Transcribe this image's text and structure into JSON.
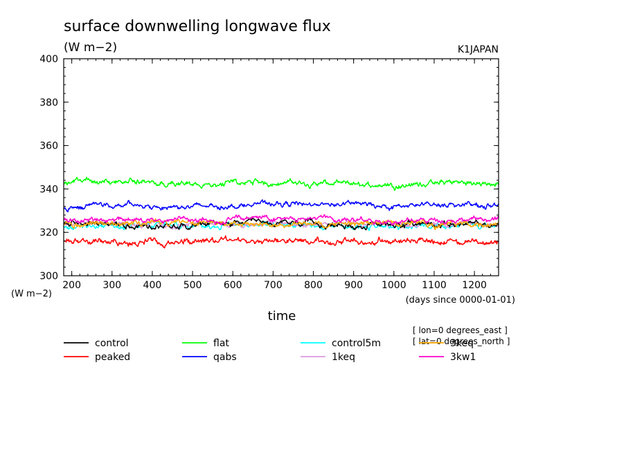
{
  "chart_data": {
    "type": "line",
    "title": "surface downwelling longwave flux",
    "units": "(W m−2)",
    "source_label": "K1JAPAN",
    "ylabel_unit": "(W m−2)",
    "xlabel": "time",
    "x_units_note": "(days since 0000-01-01)",
    "xlim": [
      180,
      1260
    ],
    "ylim": [
      300,
      400
    ],
    "x_ticks": [
      200,
      300,
      400,
      500,
      600,
      700,
      800,
      900,
      1000,
      1100,
      1200
    ],
    "y_ticks": [
      300,
      320,
      340,
      360,
      380,
      400
    ],
    "grid": false,
    "legend_position": "bottom",
    "annotations": [
      "[ lon=0 degrees_east ]",
      "[ lat=0 degrees_north ]"
    ],
    "series": [
      {
        "name": "control",
        "color": "#000000",
        "x": [
          180,
          300,
          420,
          540,
          660,
          780,
          900,
          1020,
          1140,
          1260
        ],
        "values": [
          324,
          324,
          323,
          324,
          324,
          324,
          323,
          324,
          324,
          323
        ],
        "amp": 2.0
      },
      {
        "name": "flat",
        "color": "#00ff00",
        "x": [
          180,
          300,
          420,
          540,
          660,
          780,
          900,
          1020,
          1140,
          1260
        ],
        "values": [
          343,
          343,
          343,
          342,
          343,
          343,
          342,
          342,
          343,
          342
        ],
        "amp": 2.0
      },
      {
        "name": "control5m",
        "color": "#00ffff",
        "x": [
          180,
          300,
          420,
          540,
          660,
          780,
          900,
          1020,
          1140,
          1260
        ],
        "values": [
          323,
          323,
          323,
          323,
          324,
          323,
          323,
          323,
          323,
          323
        ],
        "amp": 2.0
      },
      {
        "name": "3keq",
        "color": "#ffaa00",
        "x": [
          180,
          300,
          420,
          540,
          660,
          780,
          900,
          1020,
          1140,
          1260
        ],
        "values": [
          324,
          324,
          324,
          324,
          324,
          324,
          324,
          324,
          324,
          324
        ],
        "amp": 2.0
      },
      {
        "name": "peaked",
        "color": "#ff0000",
        "x": [
          180,
          300,
          420,
          540,
          660,
          780,
          900,
          1020,
          1140,
          1260
        ],
        "values": [
          316,
          315,
          315,
          316,
          316,
          315,
          316,
          316,
          315,
          316
        ],
        "amp": 2.2
      },
      {
        "name": "qabs",
        "color": "#0000ff",
        "x": [
          180,
          300,
          420,
          540,
          660,
          780,
          900,
          1020,
          1140,
          1260
        ],
        "values": [
          331,
          333,
          332,
          332,
          333,
          333,
          333,
          332,
          333,
          332
        ],
        "amp": 1.8
      },
      {
        "name": "1keq",
        "color": "#dd99dd",
        "x": [
          180,
          300,
          420,
          540,
          660,
          780,
          900,
          1020,
          1140,
          1260
        ],
        "values": [
          324,
          324,
          323,
          324,
          324,
          324,
          324,
          324,
          324,
          324
        ],
        "amp": 2.0
      },
      {
        "name": "3kw1",
        "color": "#ff00cc",
        "x": [
          180,
          300,
          420,
          540,
          660,
          780,
          900,
          1020,
          1140,
          1260
        ],
        "values": [
          326,
          326,
          325,
          326,
          326,
          326,
          326,
          325,
          326,
          326
        ],
        "amp": 1.8
      }
    ]
  }
}
